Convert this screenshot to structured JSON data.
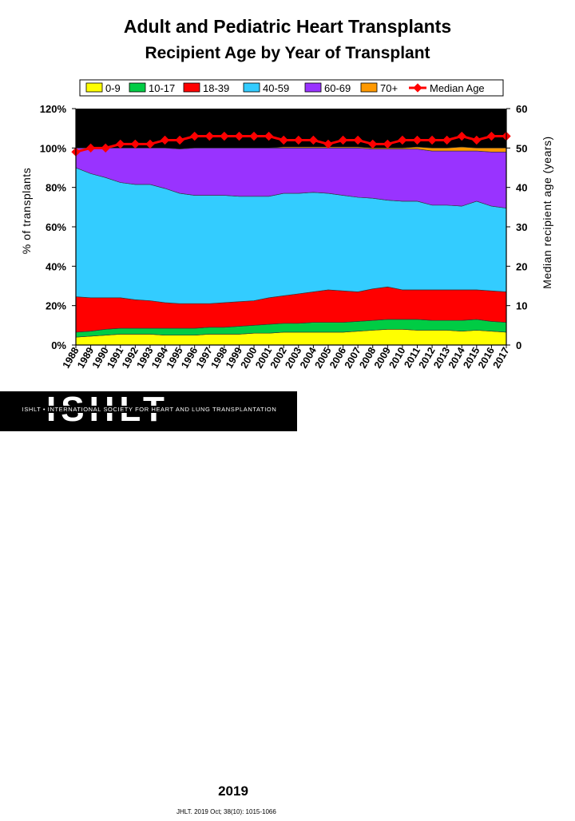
{
  "chart_data": {
    "type": "area",
    "subtype": "stacked-percent-with-line",
    "title": "Adult and Pediatric Heart Transplants",
    "subtitle": "Recipient Age by Year of Transplant",
    "ylabel_left": "% of transplants",
    "ylabel_right": "Median recipient age (years)",
    "ylim_left": [
      0,
      120
    ],
    "ylim_right": [
      0,
      60
    ],
    "yticks_left": [
      "0%",
      "20%",
      "40%",
      "60%",
      "80%",
      "100%",
      "120%"
    ],
    "yticks_right": [
      "0",
      "10",
      "20",
      "30",
      "40",
      "50",
      "60"
    ],
    "categories": [
      "1988",
      "1989",
      "1990",
      "1991",
      "1992",
      "1993",
      "1994",
      "1995",
      "1996",
      "1997",
      "1998",
      "1999",
      "2000",
      "2001",
      "2002",
      "2003",
      "2004",
      "2005",
      "2006",
      "2007",
      "2008",
      "2009",
      "2010",
      "2011",
      "2012",
      "2013",
      "2014",
      "2015",
      "2016",
      "2017"
    ],
    "legend_position": "top",
    "series": [
      {
        "name": "0-9",
        "color": "#ffff00",
        "values": [
          4,
          4.5,
          5,
          5.5,
          5.5,
          5.5,
          5,
          5,
          5,
          5.5,
          5.5,
          5.5,
          6,
          6,
          6.5,
          6.5,
          6.5,
          6.5,
          6.5,
          7,
          7.5,
          8,
          8,
          7.5,
          7.5,
          7.5,
          7,
          7.5,
          7,
          6.5
        ]
      },
      {
        "name": "10-17",
        "color": "#00cc44",
        "values": [
          2.5,
          2.5,
          3,
          3,
          3,
          3,
          3.5,
          3.5,
          3.5,
          3.5,
          3.5,
          4,
          4,
          4.5,
          4.5,
          4.5,
          5,
          5,
          5,
          5,
          5,
          5,
          5,
          5.5,
          5,
          5,
          5.5,
          5.5,
          5,
          5
        ]
      },
      {
        "name": "18-39",
        "color": "#ff0000",
        "values": [
          18,
          17,
          16,
          15.5,
          14.5,
          14,
          13,
          12.5,
          12.5,
          12,
          12.5,
          12.5,
          12.5,
          13.5,
          14,
          15,
          15.5,
          16.5,
          16,
          15,
          16,
          16.5,
          15,
          15,
          15.5,
          15.5,
          15.5,
          15,
          15.5,
          15.5
        ]
      },
      {
        "name": "40-59",
        "color": "#33ccff",
        "values": [
          65.5,
          63,
          61,
          58.5,
          58.5,
          59,
          58,
          56,
          55,
          55,
          54.5,
          53.5,
          53,
          51.5,
          52,
          51,
          50.5,
          49,
          48.5,
          48,
          46,
          44,
          45,
          45,
          43,
          43,
          42.5,
          45,
          43,
          42.5
        ]
      },
      {
        "name": "60-69",
        "color": "#9933ff",
        "values": [
          10,
          13,
          15,
          17.5,
          18.5,
          18.5,
          20.5,
          22.5,
          24,
          24,
          24,
          24.5,
          24.5,
          24.5,
          23,
          23,
          22.5,
          23,
          24,
          25,
          25,
          26,
          26.5,
          26.5,
          27.5,
          27.5,
          28,
          25.5,
          27.5,
          28.5
        ]
      },
      {
        "name": "70+",
        "color": "#ff9900",
        "values": [
          0,
          0,
          0,
          0,
          0,
          0,
          0,
          0,
          0,
          0,
          0,
          0,
          0,
          0,
          0.5,
          0.5,
          0.5,
          0.5,
          0.5,
          0.5,
          0.5,
          0.5,
          0.5,
          1,
          1.5,
          1.5,
          2,
          1.5,
          2,
          2
        ]
      },
      {
        "name": "Median Age",
        "color": "#ff0000",
        "type": "line",
        "axis": "right",
        "values": [
          49,
          50,
          50,
          51,
          51,
          51,
          52,
          52,
          53,
          53,
          53,
          53,
          53,
          53,
          52,
          52,
          52,
          51,
          52,
          52,
          51,
          51,
          52,
          52,
          52,
          52,
          53,
          52,
          53,
          53
        ]
      }
    ]
  },
  "footer": {
    "logo_word": "ISHLT",
    "logo_tagline": "ISHLT • INTERNATIONAL SOCIETY FOR HEART AND LUNG TRANSPLANTATION",
    "year": "2019",
    "citation": "JHLT. 2019 Oct; 38(10): 1015-1066"
  }
}
